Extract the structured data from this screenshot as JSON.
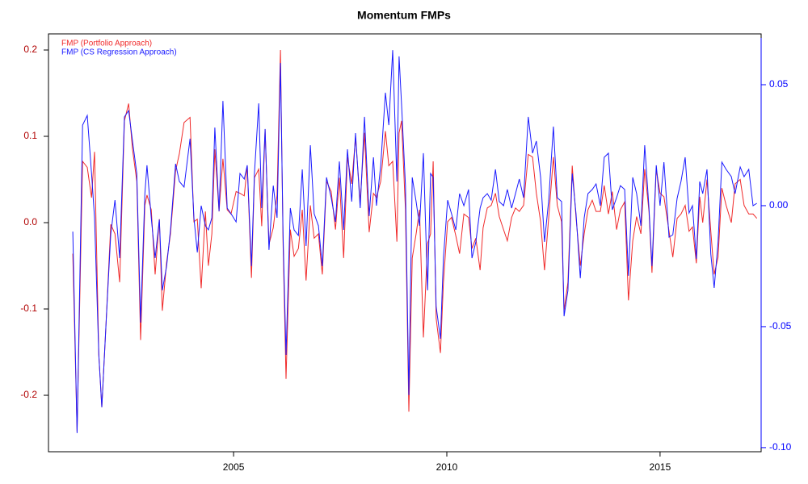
{
  "chart_data": {
    "type": "line",
    "title": "Momentum FMPs",
    "x": [
      2001.23,
      2001.33,
      2001.46,
      2001.57,
      2001.67,
      2001.74,
      2001.84,
      2001.91,
      2002.01,
      2002.12,
      2002.22,
      2002.33,
      2002.44,
      2002.54,
      2002.63,
      2002.73,
      2002.82,
      2002.92,
      2002.97,
      2003.07,
      2003.16,
      2003.26,
      2003.33,
      2003.43,
      2003.52,
      2003.64,
      2003.73,
      2003.84,
      2003.98,
      2004.07,
      2004.15,
      2004.24,
      2004.34,
      2004.41,
      2004.49,
      2004.56,
      2004.66,
      2004.75,
      2004.85,
      2004.94,
      2005.06,
      2005.15,
      2005.25,
      2005.32,
      2005.42,
      2005.49,
      2005.59,
      2005.66,
      2005.74,
      2005.83,
      2005.93,
      2006.02,
      2006.1,
      2006.16,
      2006.23,
      2006.33,
      2006.42,
      2006.52,
      2006.61,
      2006.7,
      2006.8,
      2006.89,
      2006.99,
      2007.08,
      2007.18,
      2007.29,
      2007.39,
      2007.48,
      2007.58,
      2007.67,
      2007.77,
      2007.86,
      2007.97,
      2008.07,
      2008.18,
      2008.28,
      2008.35,
      2008.45,
      2008.56,
      2008.64,
      2008.73,
      2008.83,
      2008.88,
      2008.94,
      2009.03,
      2009.11,
      2009.19,
      2009.28,
      2009.36,
      2009.45,
      2009.55,
      2009.62,
      2009.68,
      2009.75,
      2009.85,
      2009.92,
      2010.02,
      2010.11,
      2010.21,
      2010.3,
      2010.4,
      2010.51,
      2010.59,
      2010.68,
      2010.78,
      2010.85,
      2010.95,
      2011.04,
      2011.14,
      2011.23,
      2011.33,
      2011.42,
      2011.52,
      2011.61,
      2011.7,
      2011.8,
      2011.91,
      2012.01,
      2012.1,
      2012.2,
      2012.29,
      2012.39,
      2012.5,
      2012.59,
      2012.69,
      2012.75,
      2012.84,
      2012.94,
      2013.03,
      2013.13,
      2013.22,
      2013.31,
      2013.41,
      2013.5,
      2013.6,
      2013.69,
      2013.79,
      2013.88,
      2013.98,
      2014.07,
      2014.17,
      2014.26,
      2014.36,
      2014.45,
      2014.55,
      2014.64,
      2014.74,
      2014.81,
      2014.91,
      2015.0,
      2015.09,
      2015.21,
      2015.3,
      2015.4,
      2015.49,
      2015.59,
      2015.68,
      2015.76,
      2015.85,
      2015.93,
      2016.0,
      2016.1,
      2016.19,
      2016.27,
      2016.36,
      2016.45,
      2016.55,
      2016.67,
      2016.76,
      2016.88,
      2016.97,
      2017.08,
      2017.18,
      2017.27
    ],
    "series": [
      {
        "name": "FMP (Portfolio Approach)",
        "color": "#f02a2a",
        "axis": "y",
        "values": [
          -0.036,
          -0.242,
          0.071,
          0.064,
          0.029,
          0.082,
          -0.153,
          -0.214,
          -0.116,
          -0.002,
          -0.013,
          -0.069,
          0.118,
          0.138,
          0.085,
          0.048,
          -0.136,
          0.02,
          0.032,
          0.015,
          -0.06,
          0.004,
          -0.102,
          -0.046,
          -0.013,
          0.06,
          0.08,
          0.116,
          0.122,
          0.001,
          0.004,
          -0.076,
          0.013,
          -0.05,
          -0.013,
          0.085,
          0.013,
          0.074,
          0.015,
          0.01,
          0.036,
          0.034,
          0.031,
          0.066,
          -0.064,
          0.052,
          0.062,
          -0.004,
          0.108,
          -0.025,
          -0.006,
          0.032,
          0.2,
          -0.022,
          -0.181,
          -0.008,
          -0.039,
          -0.03,
          0.015,
          -0.067,
          0.02,
          -0.018,
          -0.013,
          -0.06,
          0.048,
          0.036,
          -0.008,
          0.052,
          -0.041,
          0.076,
          0.045,
          0.099,
          0.024,
          0.104,
          -0.011,
          0.034,
          0.029,
          0.048,
          0.106,
          0.066,
          0.071,
          -0.022,
          0.104,
          0.118,
          0.015,
          -0.219,
          -0.041,
          -0.013,
          0.015,
          -0.133,
          -0.024,
          -0.013,
          0.071,
          -0.111,
          -0.151,
          -0.069,
          0.001,
          0.006,
          -0.015,
          -0.036,
          0.01,
          0.006,
          -0.03,
          -0.018,
          -0.055,
          -0.006,
          0.017,
          0.02,
          0.034,
          0.007,
          -0.008,
          -0.021,
          0.006,
          0.017,
          0.013,
          0.02,
          0.079,
          0.076,
          0.034,
          0.001,
          -0.055,
          0.006,
          0.076,
          0.02,
          0.001,
          -0.102,
          -0.069,
          0.066,
          0.006,
          -0.05,
          -0.013,
          0.015,
          0.026,
          0.013,
          0.013,
          0.043,
          0.01,
          0.036,
          -0.008,
          0.015,
          0.024,
          -0.09,
          -0.021,
          0.007,
          -0.013,
          0.062,
          0.013,
          -0.058,
          0.062,
          0.034,
          0.03,
          -0.01,
          -0.04,
          0.005,
          0.01,
          0.02,
          -0.01,
          -0.005,
          -0.047,
          0.03,
          0.0,
          0.05,
          -0.01,
          -0.06,
          -0.04,
          0.04,
          0.02,
          0.0,
          0.045,
          0.05,
          0.02,
          0.01,
          0.01,
          0.005
        ]
      },
      {
        "name": "FMP (CS Regression Approach)",
        "color": "#1a1aff",
        "axis": "y2",
        "values": [
          -0.0107,
          -0.094,
          0.0333,
          0.0373,
          0.0133,
          -0.005,
          -0.0617,
          -0.0833,
          -0.0483,
          -0.0117,
          0.0023,
          -0.0217,
          0.0367,
          0.0393,
          0.0267,
          0.0133,
          -0.0483,
          0.005,
          0.0167,
          -0.005,
          -0.0217,
          -0.0057,
          -0.035,
          -0.025,
          -0.01,
          0.0173,
          0.01,
          0.0077,
          0.0277,
          -0.005,
          -0.0193,
          0,
          -0.0083,
          -0.01,
          -0.005,
          0.0323,
          -0.0023,
          0.0433,
          -0.001,
          -0.0033,
          -0.0067,
          0.0133,
          0.011,
          0.0167,
          -0.025,
          0.0133,
          0.0423,
          -0.001,
          0.0317,
          -0.0183,
          0.0083,
          -0.005,
          0.059,
          -0.0117,
          -0.0617,
          -0.001,
          -0.01,
          -0.0123,
          0.015,
          -0.0167,
          0.025,
          -0.0033,
          -0.0083,
          -0.025,
          0.0117,
          0.0033,
          -0.0067,
          0.0183,
          -0.01,
          0.0233,
          0.0017,
          0.03,
          -0.001,
          0.0367,
          -0.0043,
          0.02,
          0,
          0.0167,
          0.0467,
          0.0333,
          0.0643,
          0.01,
          0.0617,
          0.0417,
          0.0083,
          -0.0783,
          0.0117,
          0.0017,
          -0.0083,
          0.0217,
          -0.035,
          0.0133,
          0.0117,
          -0.0417,
          -0.055,
          -0.0217,
          0.0023,
          -0.0033,
          -0.01,
          0.005,
          0,
          0.0067,
          -0.0217,
          -0.015,
          -0.001,
          0.0033,
          0.005,
          0.0023,
          0.015,
          0.0017,
          0,
          0.0067,
          -0.001,
          0.005,
          0.011,
          0.0033,
          0.0367,
          0.0217,
          0.0267,
          0.0117,
          -0.015,
          0.0023,
          0.0327,
          0.0033,
          0.0017,
          -0.0457,
          -0.035,
          0.0133,
          -0.0033,
          -0.03,
          -0.005,
          0.005,
          0.0067,
          0.009,
          0,
          0.02,
          0.0217,
          -0.0017,
          0.0033,
          0.0083,
          0.0067,
          -0.029,
          0.0117,
          0.005,
          -0.0083,
          0.025,
          -0.001,
          -0.025,
          0.0167,
          0,
          0.018,
          -0.013,
          -0.012,
          0.003,
          0.01,
          0.02,
          -0.003,
          0.0,
          -0.022,
          0.01,
          0.005,
          0.015,
          -0.02,
          -0.034,
          -0.015,
          0.018,
          0.015,
          0.012,
          0.005,
          0.016,
          0.012,
          0.015,
          0.0,
          0.001
        ]
      }
    ],
    "xlim": [
      2000.66,
      2017.37
    ],
    "xticks": [
      2005,
      2010,
      2015
    ],
    "ylim": [
      -0.2654,
      0.2187
    ],
    "yticks": [
      {
        "value": -0.2,
        "label": "-0.2"
      },
      {
        "value": -0.1,
        "label": "-0.1"
      },
      {
        "value": 0,
        "label": "0.0"
      },
      0.1,
      0.2
    ],
    "y_tick_color": "#b00000",
    "y2lim": [
      -0.1017,
      0.071
    ],
    "y2ticks": [
      {
        "value": -0.1,
        "label": "-0.10"
      },
      -0.05,
      {
        "value": 0,
        "label": "0.00"
      },
      0.05
    ],
    "y2_tick_color": "#0000ff",
    "legend": "top-left",
    "grid": false
  }
}
